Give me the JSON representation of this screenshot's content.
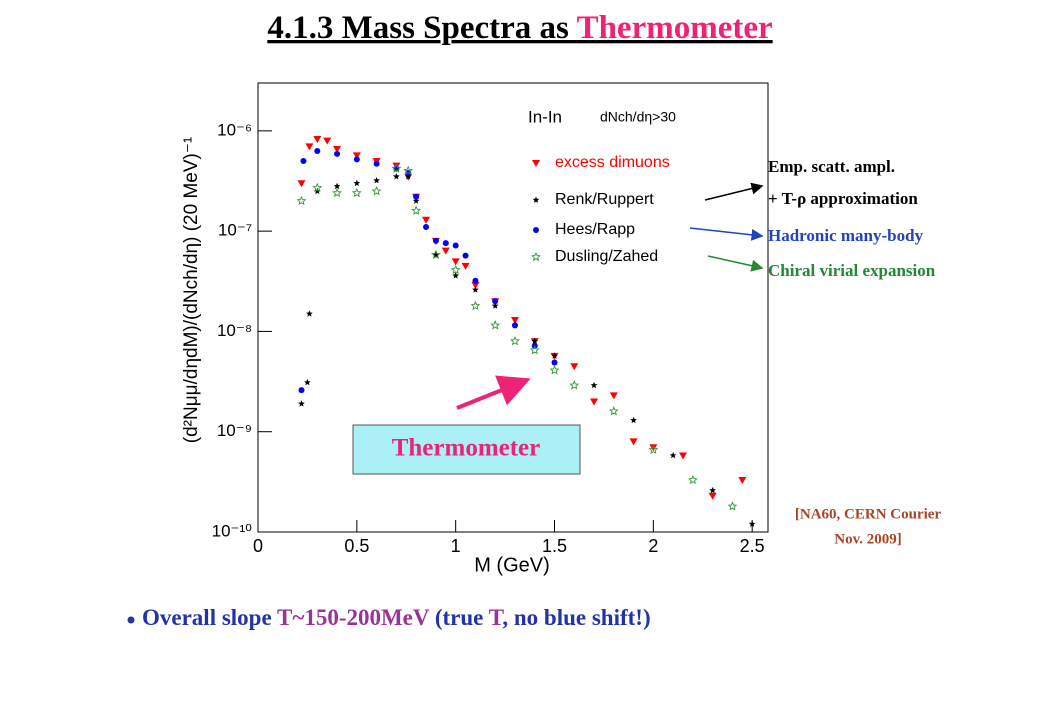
{
  "title": {
    "prefix": "4.1.3 Mass Spectra as ",
    "highlight": "Thermometer"
  },
  "chart_data": {
    "type": "scatter",
    "legend_header": "In-In",
    "legend_condition": "dNch/dη>30",
    "xlabel": "M (GeV)",
    "ylabel": "(d²Nμμ/dηdM)/(dNch/dη) (20 MeV)⁻¹",
    "ylog": true,
    "xlim": [
      0,
      2.58
    ],
    "xticks": [
      0,
      0.5,
      1,
      1.5,
      2,
      2.5
    ],
    "ylim": [
      1e-10,
      3e-06
    ],
    "yticks": [
      {
        "value": 1e-10,
        "label": "10⁻¹⁰"
      },
      {
        "value": 1e-09,
        "label": "10⁻⁹"
      },
      {
        "value": 1e-08,
        "label": "10⁻⁸"
      },
      {
        "value": 1e-07,
        "label": "10⁻⁷"
      },
      {
        "value": 1e-06,
        "label": "10⁻⁶"
      }
    ],
    "series": [
      {
        "name": "excess dimuons",
        "color": "#ff0000",
        "marker": "triangle-down",
        "x": [
          0.22,
          0.26,
          0.3,
          0.35,
          0.4,
          0.5,
          0.6,
          0.7,
          0.76,
          0.8,
          0.85,
          0.9,
          0.95,
          1.0,
          1.05,
          1.1,
          1.2,
          1.3,
          1.4,
          1.5,
          1.6,
          1.7,
          1.8,
          1.9,
          2.0,
          2.15,
          2.3,
          2.45
        ],
        "values": [
          3e-07,
          7e-07,
          8.3e-07,
          8e-07,
          6.6e-07,
          5.7e-07,
          5e-07,
          4.5e-07,
          3.5e-07,
          2.2e-07,
          1.3e-07,
          8e-08,
          6.4e-08,
          5e-08,
          4.5e-08,
          2.9e-08,
          2e-08,
          1.3e-08,
          8e-09,
          5.7e-09,
          4.5e-09,
          2e-09,
          2.3e-09,
          8e-10,
          7e-10,
          5.8e-10,
          2.3e-10,
          3.3e-10
        ]
      },
      {
        "name": "Renk/Ruppert",
        "color": "#000000",
        "marker": "star",
        "x": [
          0.22,
          0.25,
          0.26,
          0.3,
          0.4,
          0.5,
          0.6,
          0.7,
          0.76,
          0.8,
          0.9,
          1.0,
          1.1,
          1.2,
          1.3,
          1.4,
          1.5,
          1.7,
          1.9,
          2.1,
          2.3,
          2.5
        ],
        "values": [
          1.9e-09,
          3.1e-09,
          1.5e-08,
          2.5e-07,
          2.8e-07,
          3e-07,
          3.2e-07,
          3.5e-07,
          3.5e-07,
          2e-07,
          5.8e-08,
          3.6e-08,
          2.6e-08,
          1.8e-08,
          1.15e-08,
          8e-09,
          5.7e-09,
          2.9e-09,
          1.3e-09,
          5.8e-10,
          2.6e-10,
          1.2e-10
        ]
      },
      {
        "name": "Hees/Rapp",
        "color": "#0000ff",
        "marker": "circle",
        "x": [
          0.22,
          0.23,
          0.3,
          0.4,
          0.5,
          0.6,
          0.7,
          0.76,
          0.8,
          0.85,
          0.9,
          0.95,
          1.0,
          1.05,
          1.1,
          1.2,
          1.3,
          1.4,
          1.5
        ],
        "values": [
          2.6e-09,
          5e-07,
          6.3e-07,
          5.9e-07,
          5.2e-07,
          4.7e-07,
          4.2e-07,
          3.8e-07,
          2.2e-07,
          1.1e-07,
          8e-08,
          7.6e-08,
          7.2e-08,
          5.7e-08,
          3.2e-08,
          2e-08,
          1.15e-08,
          7.2e-09,
          4.9e-09
        ]
      },
      {
        "name": "Dusling/Zahed",
        "color": "#339933",
        "marker": "open-star",
        "x": [
          0.22,
          0.3,
          0.4,
          0.5,
          0.6,
          0.7,
          0.76,
          0.8,
          0.9,
          1.0,
          1.1,
          1.2,
          1.3,
          1.4,
          1.5,
          1.6,
          1.8,
          2.0,
          2.2,
          2.4
        ],
        "values": [
          2e-07,
          2.7e-07,
          2.4e-07,
          2.4e-07,
          2.5e-07,
          4.2e-07,
          4e-07,
          1.6e-07,
          5.8e-08,
          4.1e-08,
          1.8e-08,
          1.15e-08,
          8e-09,
          6.5e-09,
          4.1e-09,
          2.9e-09,
          1.6e-09,
          6.6e-10,
          3.3e-10,
          1.8e-10
        ]
      }
    ]
  },
  "annotations": {
    "renk_line1": "Emp. scatt. ampl.",
    "renk_line2": "+ T-ρ approximation",
    "hees": "Hadronic many-body",
    "dusling": "Chiral virial expansion",
    "thermometer": "Thermometer"
  },
  "citation": {
    "line1": "[NA60, CERN Courier",
    "line2": "Nov. 2009]"
  },
  "bullet": [
    {
      "text": "Overall slope ",
      "color": "#2233aa"
    },
    {
      "text": "T~150-200MeV",
      "color": "#993399"
    },
    {
      "text": " (true ",
      "color": "#2233aa"
    },
    {
      "text": "T",
      "color": "#993399"
    },
    {
      "text": ", no blue shift!)",
      "color": "#2233aa"
    }
  ]
}
